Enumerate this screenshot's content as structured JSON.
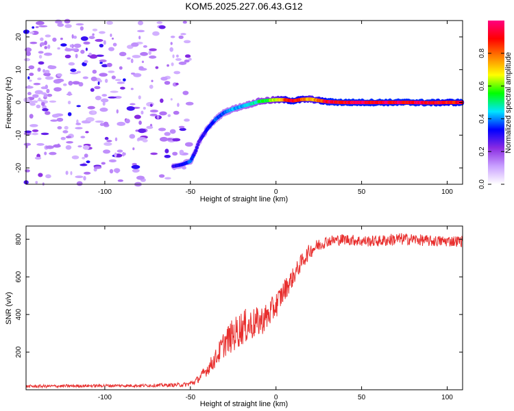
{
  "title": "KOM5.2025.227.06.43.G12",
  "chart_data": [
    {
      "type": "heatmap",
      "title": "KOM5.2025.227.06.43.G12",
      "xlabel": "Height of straight line (km)",
      "ylabel": "Frequency (Hz)",
      "xlim": [
        -146,
        109
      ],
      "ylim": [
        -25,
        25
      ],
      "xticks": [
        -100,
        -50,
        0,
        50,
        100
      ],
      "yticks": [
        -20,
        -10,
        0,
        10,
        20
      ],
      "xtick_labels": [
        "-100",
        "-50",
        "0",
        "50",
        "100"
      ],
      "ytick_labels": [
        "-20",
        "-10",
        "0",
        "10",
        "20"
      ],
      "ridge": {
        "description": "Doppler frequency ridge of normalized spectral amplitude",
        "x": [
          -60,
          -55,
          -50,
          -47,
          -45,
          -40,
          -35,
          -30,
          -25,
          -20,
          -15,
          -10,
          -5,
          0,
          5,
          10,
          15,
          20,
          25,
          30,
          40,
          60,
          80,
          90,
          100,
          109
        ],
        "freq": [
          -19.5,
          -19,
          -18,
          -15,
          -12,
          -8,
          -5,
          -3,
          -2,
          -1.2,
          -0.5,
          0.3,
          0.6,
          0.8,
          0.8,
          0.5,
          0.9,
          1.0,
          0.6,
          0.2,
          0,
          0,
          0,
          -0.1,
          0,
          0
        ],
        "amplitude": [
          0.3,
          0.35,
          0.4,
          0.3,
          0.3,
          0.35,
          0.4,
          0.4,
          0.45,
          0.45,
          0.5,
          0.55,
          0.6,
          0.7,
          0.85,
          1.0,
          0.9,
          0.75,
          0.85,
          1.0,
          1.0,
          1.0,
          1.0,
          1.0,
          0.95,
          1.0
        ]
      },
      "noise_region_x": [
        -146,
        -50
      ],
      "colorbar": {
        "label": "Normalized spectral amplitude",
        "range": [
          0,
          1
        ],
        "ticks": [
          0.0,
          0.2,
          0.4,
          0.6,
          0.8
        ],
        "tick_labels": [
          "0.0",
          "0.2",
          "0.4",
          "0.6",
          "0.8"
        ],
        "colors": [
          "#ffffff",
          "#c9a0ff",
          "#8a2be2",
          "#0000ff",
          "#00e5ff",
          "#00ff00",
          "#ffff00",
          "#ff8000",
          "#ff0000",
          "#ff0080"
        ]
      }
    },
    {
      "type": "line",
      "xlabel": "Height of straight line (km)",
      "ylabel": "SNR (v/v)",
      "xlim": [
        -146,
        109
      ],
      "ylim": [
        0,
        870
      ],
      "xticks": [
        -100,
        -50,
        0,
        50,
        100
      ],
      "yticks": [
        200,
        400,
        600,
        800
      ],
      "xtick_labels": [
        "-100",
        "-50",
        "0",
        "50",
        "100"
      ],
      "ytick_labels": [
        "200",
        "400",
        "600",
        "800"
      ],
      "series": [
        {
          "name": "SNR",
          "color": "#e8302f",
          "x": [
            -146,
            -120,
            -100,
            -80,
            -60,
            -52,
            -48,
            -45,
            -40,
            -35,
            -30,
            -25,
            -20,
            -15,
            -10,
            -5,
            0,
            5,
            10,
            15,
            20,
            25,
            30,
            35,
            40,
            50,
            60,
            70,
            80,
            90,
            100,
            109
          ],
          "y": [
            18,
            20,
            22,
            22,
            25,
            28,
            40,
            60,
            110,
            170,
            250,
            290,
            330,
            345,
            360,
            390,
            450,
            530,
            600,
            680,
            740,
            770,
            790,
            795,
            800,
            790,
            790,
            800,
            800,
            790,
            790,
            790
          ],
          "noise_amp": [
            8,
            8,
            8,
            8,
            10,
            12,
            15,
            20,
            35,
            50,
            75,
            90,
            95,
            90,
            80,
            75,
            70,
            60,
            50,
            45,
            40,
            35,
            30,
            30,
            30,
            30,
            30,
            35,
            30,
            30,
            30,
            30
          ]
        }
      ]
    }
  ]
}
